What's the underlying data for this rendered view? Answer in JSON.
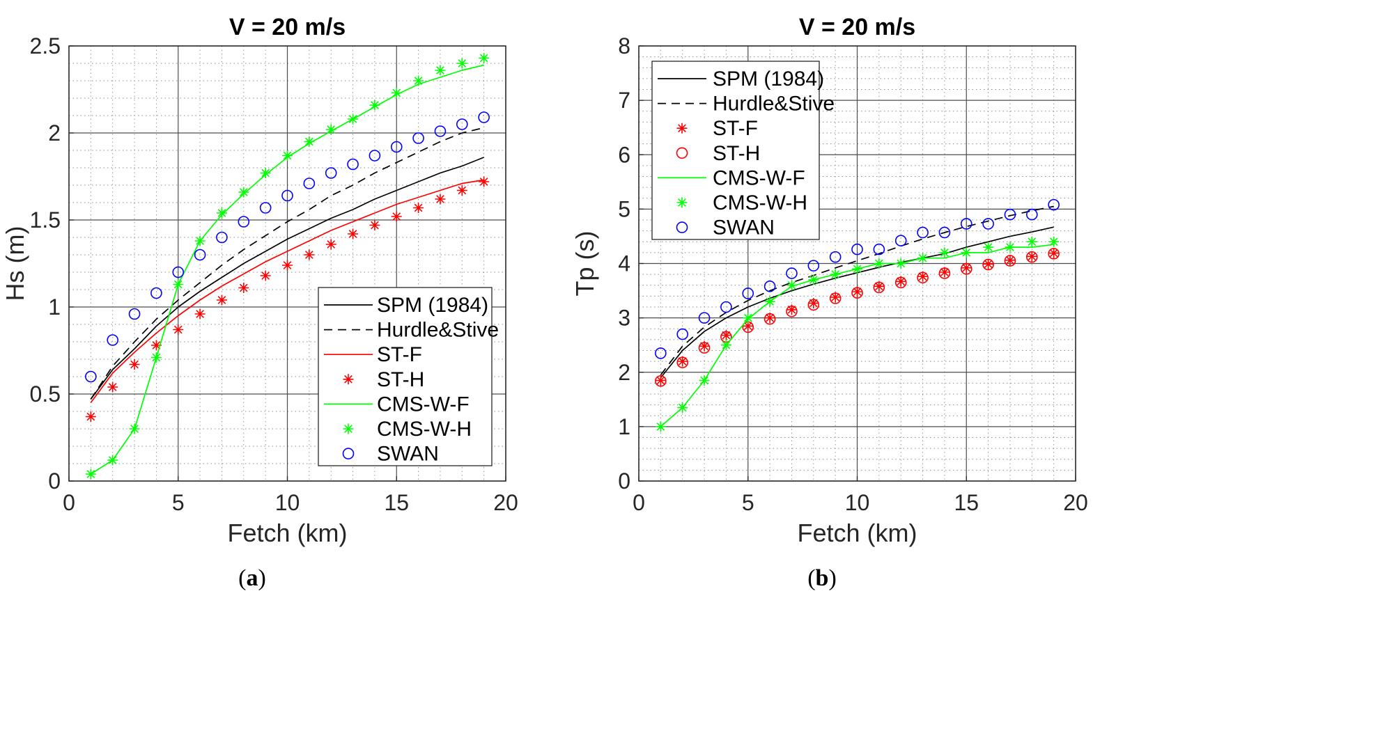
{
  "chart_data": [
    {
      "type": "line",
      "panel": "a",
      "caption_open": "(",
      "caption_letter": "a",
      "caption_close": ")",
      "title": "V = 20 m/s",
      "xlabel": "Fetch (km)",
      "ylabel": "Hs (m)",
      "xlim": [
        0,
        20
      ],
      "ylim": [
        0,
        2.5
      ],
      "xticks": [
        0,
        5,
        10,
        15,
        20
      ],
      "yticks": [
        0,
        0.5,
        1,
        1.5,
        2,
        2.5
      ],
      "ytick_labels": [
        "0",
        "0.5",
        "1",
        "1.5",
        "2",
        "2.5"
      ],
      "grid": true,
      "legend_position": "bottom-right",
      "x": [
        1,
        2,
        3,
        4,
        5,
        6,
        7,
        8,
        9,
        10,
        11,
        12,
        13,
        14,
        15,
        16,
        17,
        18,
        19
      ],
      "series": [
        {
          "name": "SPM (1984)",
          "style": "solid",
          "color": "#000000",
          "marker": "none",
          "values": [
            0.47,
            0.64,
            0.76,
            0.89,
            1.0,
            1.09,
            1.17,
            1.25,
            1.32,
            1.39,
            1.45,
            1.51,
            1.56,
            1.62,
            1.67,
            1.72,
            1.77,
            1.81,
            1.86
          ]
        },
        {
          "name": "Hurdle&Stive",
          "style": "dashed",
          "color": "#000000",
          "marker": "none",
          "values": [
            0.47,
            0.66,
            0.8,
            0.93,
            1.04,
            1.14,
            1.24,
            1.33,
            1.41,
            1.49,
            1.56,
            1.64,
            1.7,
            1.77,
            1.83,
            1.89,
            1.95,
            2.0,
            2.03
          ]
        },
        {
          "name": "ST-F",
          "style": "solid",
          "color": "#ff0000",
          "marker": "none",
          "values": [
            0.45,
            0.62,
            0.74,
            0.85,
            0.95,
            1.04,
            1.12,
            1.19,
            1.26,
            1.32,
            1.38,
            1.44,
            1.49,
            1.54,
            1.59,
            1.63,
            1.67,
            1.71,
            1.73
          ]
        },
        {
          "name": "ST-H",
          "style": "none",
          "color": "#ff0000",
          "marker": "asterisk",
          "values": [
            0.37,
            0.54,
            0.67,
            0.78,
            0.87,
            0.96,
            1.04,
            1.11,
            1.18,
            1.24,
            1.3,
            1.36,
            1.42,
            1.47,
            1.52,
            1.57,
            1.62,
            1.67,
            1.72
          ]
        },
        {
          "name": "CMS-W-F",
          "style": "solid",
          "color": "#00ff00",
          "marker": "none",
          "values": [
            0.04,
            0.12,
            0.3,
            0.71,
            1.13,
            1.38,
            1.53,
            1.65,
            1.76,
            1.86,
            1.94,
            2.01,
            2.08,
            2.15,
            2.22,
            2.28,
            2.32,
            2.36,
            2.39
          ]
        },
        {
          "name": "CMS-W-H",
          "style": "none",
          "color": "#00ff00",
          "marker": "asterisk",
          "values": [
            0.04,
            0.12,
            0.3,
            0.71,
            1.13,
            1.38,
            1.54,
            1.66,
            1.77,
            1.87,
            1.95,
            2.02,
            2.08,
            2.16,
            2.23,
            2.3,
            2.36,
            2.4,
            2.43
          ]
        },
        {
          "name": "SWAN",
          "style": "none",
          "color": "#0000ff",
          "marker": "circle",
          "values": [
            0.6,
            0.81,
            0.96,
            1.08,
            1.2,
            1.3,
            1.4,
            1.49,
            1.57,
            1.64,
            1.71,
            1.77,
            1.82,
            1.87,
            1.92,
            1.97,
            2.01,
            2.05,
            2.09
          ]
        }
      ]
    },
    {
      "type": "line",
      "panel": "b",
      "caption_open": "(",
      "caption_letter": "b",
      "caption_close": ")",
      "title": "V = 20 m/s",
      "xlabel": "Fetch (km)",
      "ylabel": "Tp (s)",
      "xlim": [
        0,
        20
      ],
      "ylim": [
        0,
        8
      ],
      "xticks": [
        0,
        5,
        10,
        15,
        20
      ],
      "yticks": [
        0,
        1,
        2,
        3,
        4,
        5,
        6,
        7,
        8
      ],
      "ytick_labels": [
        "0",
        "1",
        "2",
        "3",
        "4",
        "5",
        "6",
        "7",
        "8"
      ],
      "grid": true,
      "legend_position": "top-left",
      "x": [
        1,
        2,
        3,
        4,
        5,
        6,
        7,
        8,
        9,
        10,
        11,
        12,
        13,
        14,
        15,
        16,
        17,
        18,
        19
      ],
      "series": [
        {
          "name": "SPM (1984)",
          "style": "solid",
          "color": "#000000",
          "marker": "none",
          "values": [
            1.9,
            2.4,
            2.75,
            3.0,
            3.2,
            3.36,
            3.5,
            3.62,
            3.73,
            3.83,
            3.93,
            4.02,
            4.1,
            4.18,
            4.3,
            4.4,
            4.5,
            4.58,
            4.67
          ]
        },
        {
          "name": "Hurdle&Stive",
          "style": "dashed",
          "color": "#000000",
          "marker": "none",
          "values": [
            1.95,
            2.48,
            2.83,
            3.1,
            3.32,
            3.5,
            3.65,
            3.78,
            3.92,
            4.05,
            4.18,
            4.32,
            4.45,
            4.57,
            4.68,
            4.78,
            4.88,
            4.97,
            5.05
          ]
        },
        {
          "name": "ST-F",
          "style": "none",
          "color": "#ff0000",
          "marker": "asterisk",
          "values": [
            1.85,
            2.2,
            2.48,
            2.68,
            2.85,
            3.0,
            3.15,
            3.27,
            3.38,
            3.48,
            3.58,
            3.67,
            3.76,
            3.84,
            3.92,
            3.99,
            4.06,
            4.13,
            4.19
          ]
        },
        {
          "name": "ST-H",
          "style": "none",
          "color": "#ff0000",
          "marker": "circle",
          "values": [
            1.84,
            2.18,
            2.45,
            2.65,
            2.83,
            2.98,
            3.12,
            3.24,
            3.36,
            3.46,
            3.56,
            3.65,
            3.74,
            3.82,
            3.9,
            3.98,
            4.05,
            4.12,
            4.18
          ]
        },
        {
          "name": "CMS-W-F",
          "style": "solid",
          "color": "#00ff00",
          "marker": "none",
          "values": [
            1.0,
            1.35,
            1.85,
            2.5,
            2.98,
            3.3,
            3.58,
            3.7,
            3.8,
            3.9,
            4.0,
            4.0,
            4.1,
            4.1,
            4.2,
            4.2,
            4.3,
            4.3,
            4.35
          ]
        },
        {
          "name": "CMS-W-H",
          "style": "none",
          "color": "#00ff00",
          "marker": "asterisk",
          "values": [
            1.0,
            1.35,
            1.85,
            2.5,
            3.0,
            3.3,
            3.6,
            3.7,
            3.8,
            3.9,
            4.0,
            4.0,
            4.1,
            4.2,
            4.2,
            4.3,
            4.3,
            4.4,
            4.4
          ]
        },
        {
          "name": "SWAN",
          "style": "none",
          "color": "#0000ff",
          "marker": "circle",
          "values": [
            2.35,
            2.7,
            3.0,
            3.2,
            3.45,
            3.58,
            3.82,
            3.96,
            4.12,
            4.26,
            4.26,
            4.42,
            4.57,
            4.57,
            4.73,
            4.73,
            4.9,
            4.9,
            5.08
          ]
        }
      ]
    }
  ]
}
